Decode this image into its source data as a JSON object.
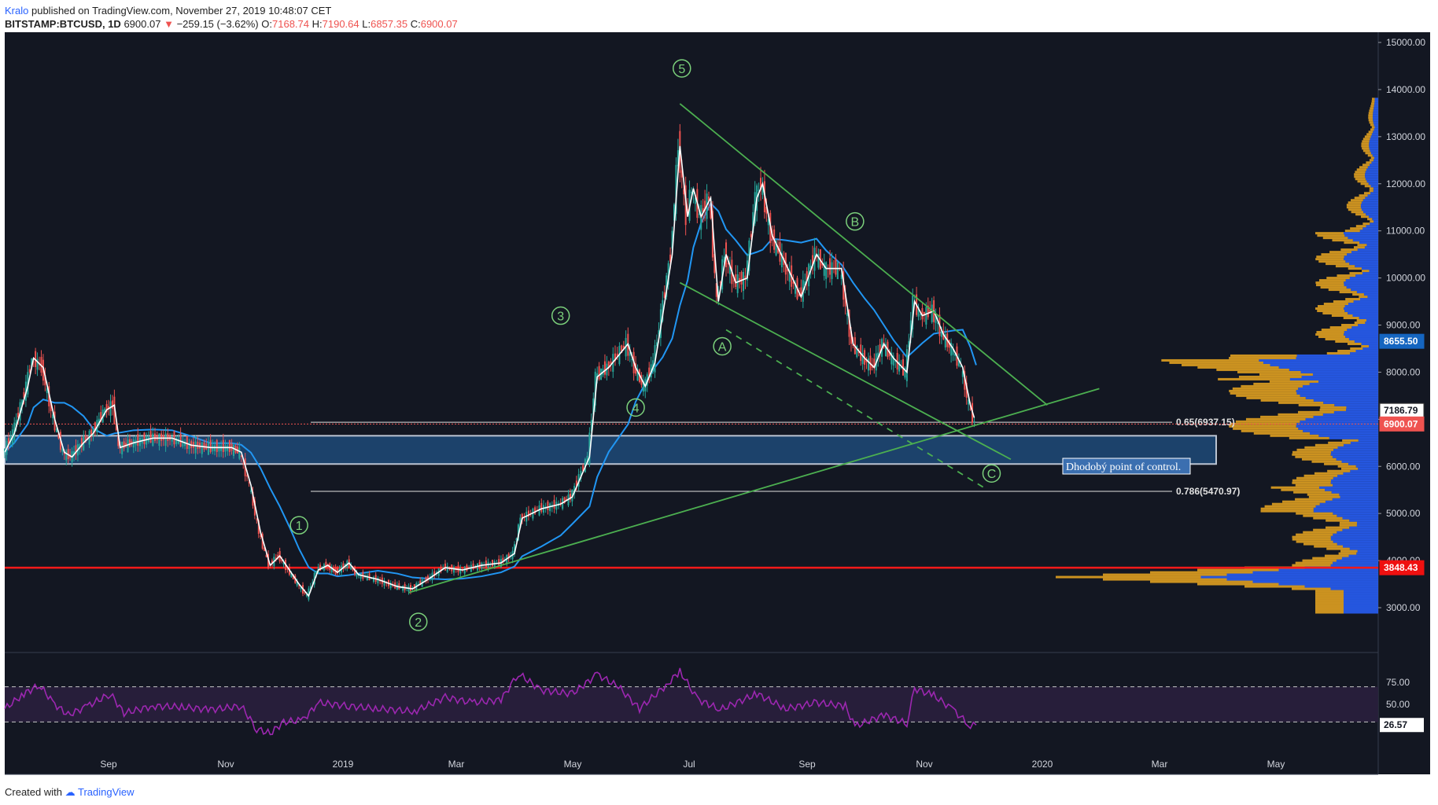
{
  "header": {
    "author": "Kralo",
    "published": "published on TradingView.com, November 27, 2019 10:48:07 CET",
    "symbol": "BITSTAMP:BTCUSD, 1D",
    "last": "6900.07",
    "change": "−259.15 (−3.62%)",
    "o_label": "O:",
    "o_value": "7168.74",
    "h_label": "H:",
    "h_value": "7190.64",
    "l_label": "L:",
    "l_value": "6857.35",
    "c_label": "C:",
    "c_value": "6900.07"
  },
  "footer": {
    "created": "Created with",
    "brand": "TradingView"
  },
  "colors": {
    "background": "#131722",
    "candle_up": "#26a69a",
    "candle_down": "#ef5350",
    "ma_fast": "#ffffff",
    "ma_slow": "#2196f3",
    "trendline": "#4caf50",
    "support_red": "#ff1a1a",
    "rsi": "#9c27b0",
    "zone": "#1e4a78",
    "volume_profile_up": "#2962ff",
    "volume_profile_down": "#e0a020"
  },
  "chart_data": {
    "type": "candlestick",
    "price_axis": {
      "ticks": [
        "15000.00",
        "14000.00",
        "13000.00",
        "12000.00",
        "11000.00",
        "10000.00",
        "9000.00",
        "8000.00",
        "7000.00",
        "6000.00",
        "5000.00",
        "4000.00",
        "3000.00"
      ],
      "ylim": [
        2000,
        15200
      ],
      "price_tags": [
        {
          "text": "8655.50",
          "value": 8655.5,
          "color": "#1565c0"
        },
        {
          "text": "7186.79",
          "value": 7186.79,
          "color": "#ffffff"
        },
        {
          "text": "6900.07",
          "value": 6900.07,
          "color": "#ef5350"
        },
        {
          "text": "3848.43",
          "value": 3848.43,
          "color": "#ef1010"
        }
      ]
    },
    "time_axis": {
      "ticks": [
        "Sep",
        "Nov",
        "2019",
        "Mar",
        "May",
        "Jul",
        "Sep",
        "Nov",
        "2020",
        "Mar",
        "May"
      ]
    },
    "fib_levels": [
      {
        "text": "0.65(6937.15)",
        "value": 6937.15
      },
      {
        "text": "0.786(5470.97)",
        "value": 5470.97
      }
    ],
    "support_line": 3848.43,
    "poc_zone": {
      "low": 6050,
      "high": 6650,
      "label": "Dhodobý point of control."
    },
    "wave_labels": [
      {
        "text": "1",
        "date": "2018-12-10",
        "price": 4750
      },
      {
        "text": "2",
        "date": "2019-02-10",
        "price": 2700
      },
      {
        "text": "3",
        "date": "2019-04-25",
        "price": 9200
      },
      {
        "text": "4",
        "date": "2019-06-03",
        "price": 7250
      },
      {
        "text": "5",
        "date": "2019-06-27",
        "price": 14450
      },
      {
        "text": "A",
        "date": "2019-07-18",
        "price": 8550
      },
      {
        "text": "B",
        "date": "2019-09-25",
        "price": 11200
      },
      {
        "text": "C",
        "date": "2019-12-05",
        "price": 5850
      }
    ],
    "price_path": [
      [
        "2018-07-10",
        6300
      ],
      [
        "2018-07-15",
        6700
      ],
      [
        "2018-07-22",
        7700
      ],
      [
        "2018-07-25",
        8300
      ],
      [
        "2018-07-30",
        8100
      ],
      [
        "2018-08-05",
        7000
      ],
      [
        "2018-08-10",
        6300
      ],
      [
        "2018-08-14",
        6200
      ],
      [
        "2018-08-20",
        6500
      ],
      [
        "2018-08-25",
        6700
      ],
      [
        "2018-09-01",
        7200
      ],
      [
        "2018-09-05",
        7300
      ],
      [
        "2018-09-08",
        6400
      ],
      [
        "2018-09-15",
        6500
      ],
      [
        "2018-09-25",
        6600
      ],
      [
        "2018-10-05",
        6600
      ],
      [
        "2018-10-15",
        6450
      ],
      [
        "2018-10-25",
        6400
      ],
      [
        "2018-11-05",
        6400
      ],
      [
        "2018-11-10",
        6300
      ],
      [
        "2018-11-15",
        5600
      ],
      [
        "2018-11-20",
        4600
      ],
      [
        "2018-11-25",
        3900
      ],
      [
        "2018-11-30",
        4100
      ],
      [
        "2018-12-05",
        3800
      ],
      [
        "2018-12-10",
        3500
      ],
      [
        "2018-12-15",
        3250
      ],
      [
        "2018-12-20",
        3800
      ],
      [
        "2018-12-25",
        3900
      ],
      [
        "2018-12-30",
        3750
      ],
      [
        "2019-01-05",
        3950
      ],
      [
        "2019-01-10",
        3700
      ],
      [
        "2019-01-20",
        3600
      ],
      [
        "2019-01-30",
        3450
      ],
      [
        "2019-02-07",
        3400
      ],
      [
        "2019-02-15",
        3600
      ],
      [
        "2019-02-24",
        3850
      ],
      [
        "2019-03-05",
        3800
      ],
      [
        "2019-03-15",
        3900
      ],
      [
        "2019-03-25",
        3950
      ],
      [
        "2019-04-01",
        4150
      ],
      [
        "2019-04-05",
        4900
      ],
      [
        "2019-04-15",
        5100
      ],
      [
        "2019-04-25",
        5200
      ],
      [
        "2019-05-01",
        5350
      ],
      [
        "2019-05-10",
        6200
      ],
      [
        "2019-05-14",
        7900
      ],
      [
        "2019-05-20",
        8100
      ],
      [
        "2019-05-30",
        8600
      ],
      [
        "2019-06-03",
        8100
      ],
      [
        "2019-06-08",
        7700
      ],
      [
        "2019-06-13",
        8200
      ],
      [
        "2019-06-17",
        9200
      ],
      [
        "2019-06-22",
        10500
      ],
      [
        "2019-06-26",
        12800
      ],
      [
        "2019-06-30",
        11300
      ],
      [
        "2019-07-03",
        11900
      ],
      [
        "2019-07-07",
        11300
      ],
      [
        "2019-07-12",
        11700
      ],
      [
        "2019-07-16",
        9500
      ],
      [
        "2019-07-20",
        10500
      ],
      [
        "2019-07-25",
        9900
      ],
      [
        "2019-07-31",
        10000
      ],
      [
        "2019-08-05",
        11700
      ],
      [
        "2019-08-08",
        12000
      ],
      [
        "2019-08-13",
        10900
      ],
      [
        "2019-08-20",
        10300
      ],
      [
        "2019-08-28",
        9600
      ],
      [
        "2019-09-05",
        10500
      ],
      [
        "2019-09-10",
        10200
      ],
      [
        "2019-09-18",
        10200
      ],
      [
        "2019-09-24",
        8600
      ],
      [
        "2019-09-30",
        8300
      ],
      [
        "2019-10-05",
        8100
      ],
      [
        "2019-10-10",
        8600
      ],
      [
        "2019-10-15",
        8300
      ],
      [
        "2019-10-22",
        8000
      ],
      [
        "2019-10-26",
        9500
      ],
      [
        "2019-10-30",
        9200
      ],
      [
        "2019-11-05",
        9300
      ],
      [
        "2019-11-10",
        8800
      ],
      [
        "2019-11-15",
        8500
      ],
      [
        "2019-11-20",
        8100
      ],
      [
        "2019-11-24",
        7300
      ],
      [
        "2019-11-27",
        6900
      ]
    ],
    "rsi": {
      "ticks": [
        "75.00",
        "50.00"
      ],
      "upper": 70,
      "lower": 30,
      "last_tag": "26.57",
      "path": [
        [
          "2018-07-10",
          45
        ],
        [
          "2018-07-20",
          62
        ],
        [
          "2018-07-28",
          72
        ],
        [
          "2018-08-05",
          50
        ],
        [
          "2018-08-12",
          38
        ],
        [
          "2018-08-22",
          48
        ],
        [
          "2018-09-03",
          62
        ],
        [
          "2018-09-10",
          40
        ],
        [
          "2018-09-25",
          48
        ],
        [
          "2018-10-10",
          47
        ],
        [
          "2018-10-25",
          44
        ],
        [
          "2018-11-10",
          48
        ],
        [
          "2018-11-18",
          22
        ],
        [
          "2018-11-25",
          17
        ],
        [
          "2018-12-02",
          30
        ],
        [
          "2018-12-12",
          32
        ],
        [
          "2018-12-20",
          52
        ],
        [
          "2019-01-05",
          48
        ],
        [
          "2019-01-20",
          45
        ],
        [
          "2019-02-08",
          42
        ],
        [
          "2019-02-24",
          58
        ],
        [
          "2019-03-10",
          52
        ],
        [
          "2019-03-25",
          55
        ],
        [
          "2019-04-03",
          85
        ],
        [
          "2019-04-15",
          66
        ],
        [
          "2019-05-01",
          62
        ],
        [
          "2019-05-14",
          84
        ],
        [
          "2019-05-25",
          70
        ],
        [
          "2019-06-05",
          45
        ],
        [
          "2019-06-20",
          74
        ],
        [
          "2019-06-26",
          88
        ],
        [
          "2019-07-05",
          56
        ],
        [
          "2019-07-17",
          44
        ],
        [
          "2019-08-05",
          62
        ],
        [
          "2019-08-20",
          45
        ],
        [
          "2019-09-05",
          52
        ],
        [
          "2019-09-20",
          48
        ],
        [
          "2019-09-25",
          25
        ],
        [
          "2019-10-10",
          38
        ],
        [
          "2019-10-22",
          28
        ],
        [
          "2019-10-26",
          68
        ],
        [
          "2019-11-05",
          60
        ],
        [
          "2019-11-15",
          44
        ],
        [
          "2019-11-24",
          25
        ],
        [
          "2019-11-27",
          26.57
        ]
      ]
    },
    "trendlines": [
      {
        "kind": "solid",
        "from": [
          "2019-06-26",
          13700
        ],
        "to": [
          "2020-01-03",
          7300
        ]
      },
      {
        "kind": "solid",
        "from": [
          "2019-06-26",
          9900
        ],
        "to": [
          "2019-12-15",
          6150
        ]
      },
      {
        "kind": "dashed",
        "from": [
          "2019-07-20",
          8900
        ],
        "to": [
          "2019-12-01",
          5550
        ]
      },
      {
        "kind": "solid",
        "from": [
          "2019-02-05",
          3320
        ],
        "to": [
          "2020-01-30",
          7650
        ]
      }
    ]
  }
}
